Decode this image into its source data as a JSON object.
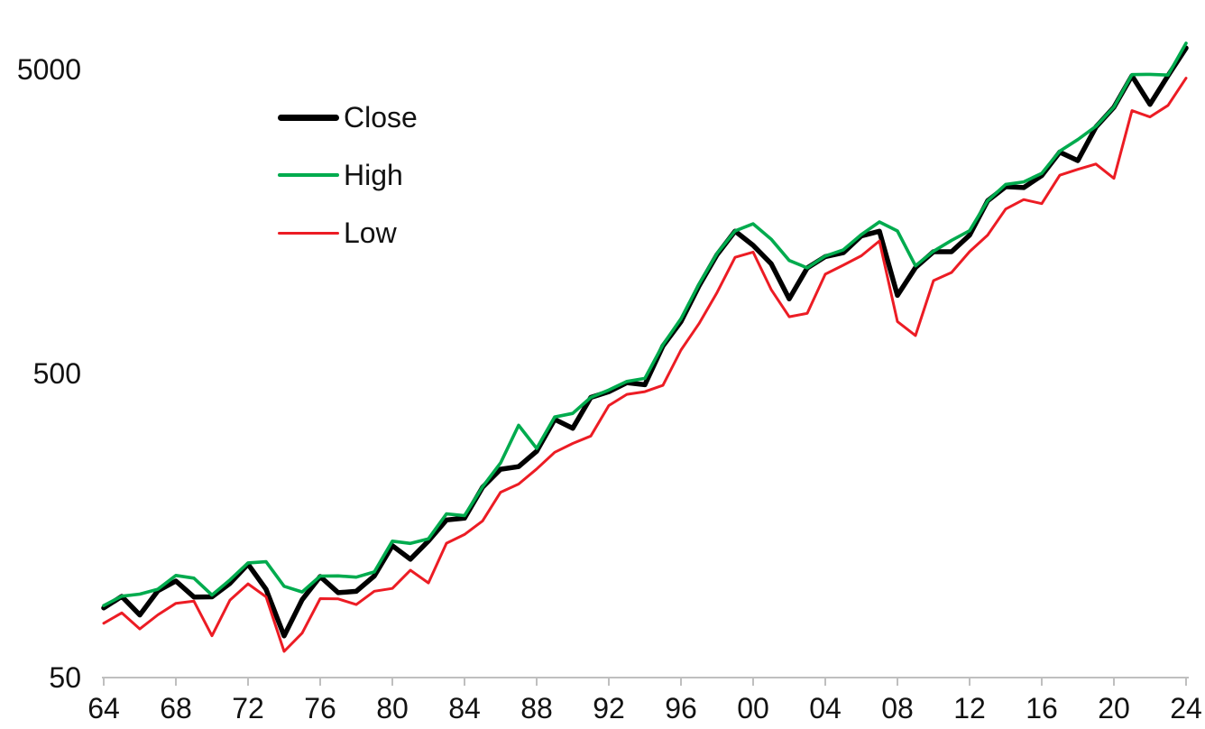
{
  "chart_data": {
    "type": "line",
    "title": "",
    "grid": false,
    "axis_color": "#BFBFBF",
    "label_color": "#121212",
    "legend": {
      "position": "inside-top-left",
      "items": [
        "Close",
        "High",
        "Low"
      ]
    },
    "x_axis": {
      "label": "",
      "start_year": 1964,
      "end_year": 2024,
      "tick_years": [
        1964,
        1968,
        1972,
        1976,
        1980,
        1984,
        1988,
        1992,
        1996,
        2000,
        2004,
        2008,
        2012,
        2016,
        2020,
        2024
      ],
      "tick_labels": [
        "64",
        "68",
        "72",
        "76",
        "80",
        "84",
        "88",
        "92",
        "96",
        "00",
        "04",
        "08",
        "12",
        "16",
        "20",
        "24"
      ]
    },
    "y_axis": {
      "scale": "log",
      "tick_values": [
        50,
        500,
        5000
      ],
      "tick_labels": [
        "50",
        "500",
        "5000"
      ],
      "range": [
        50,
        6300
      ]
    },
    "years": [
      1964,
      1965,
      1966,
      1967,
      1968,
      1969,
      1970,
      1971,
      1972,
      1973,
      1974,
      1975,
      1976,
      1977,
      1978,
      1979,
      1980,
      1981,
      1982,
      1983,
      1984,
      1985,
      1986,
      1987,
      1988,
      1989,
      1990,
      1991,
      1992,
      1993,
      1994,
      1995,
      1996,
      1997,
      1998,
      1999,
      2000,
      2001,
      2002,
      2003,
      2004,
      2005,
      2006,
      2007,
      2008,
      2009,
      2010,
      2011,
      2012,
      2013,
      2014,
      2015,
      2016,
      2017,
      2018,
      2019,
      2020,
      2021,
      2022,
      2023,
      2024
    ],
    "series": [
      {
        "name": "Close",
        "color": "#000000",
        "stroke_width": 5.5,
        "values": [
          84.75,
          92.43,
          80.33,
          96.47,
          103.86,
          92.06,
          92.15,
          102.09,
          118.05,
          97.55,
          68.56,
          90.19,
          107.46,
          95.1,
          96.11,
          107.94,
          135.76,
          122.55,
          140.64,
          164.93,
          167.24,
          211.28,
          242.17,
          247.08,
          277.72,
          353.4,
          330.22,
          417.09,
          435.71,
          466.45,
          459.27,
          615.93,
          740.74,
          970.43,
          1229.23,
          1469.25,
          1320.28,
          1148.08,
          879.82,
          1111.92,
          1211.92,
          1248.29,
          1418.3,
          1468.36,
          903.25,
          1115.1,
          1257.64,
          1257.6,
          1426.19,
          1848.36,
          2058.9,
          2043.94,
          2238.83,
          2673.61,
          2506.85,
          3230.78,
          3756.07,
          4766.18,
          3839.5,
          4769.83,
          5881.63
        ]
      },
      {
        "name": "High",
        "color": "#00AB4E",
        "stroke_width": 3.6,
        "values": [
          86.28,
          92.63,
          94.06,
          97.59,
          108.37,
          106.16,
          93.46,
          104.77,
          119.12,
          120.24,
          99.8,
          95.61,
          107.83,
          107.97,
          106.99,
          111.27,
          140.52,
          138.12,
          143.02,
          172.65,
          170.41,
          212.02,
          254.0,
          337.89,
          283.66,
          359.8,
          369.78,
          417.09,
          441.28,
          470.94,
          482.0,
          621.69,
          757.03,
          983.79,
          1241.81,
          1473.09,
          1552.87,
          1383.37,
          1176.97,
          1112.56,
          1217.33,
          1275.8,
          1431.81,
          1576.09,
          1471.77,
          1130.38,
          1262.6,
          1370.58,
          1474.51,
          1849.44,
          2093.55,
          2134.72,
          2277.53,
          2694.97,
          2940.91,
          3247.93,
          3760.2,
          4808.93,
          4818.62,
          4793.3,
          6099.97
        ]
      },
      {
        "name": "Low",
        "color": "#EC1C24",
        "stroke_width": 3,
        "values": [
          75.43,
          81.6,
          72.28,
          80.38,
          87.72,
          89.2,
          68.61,
          89.94,
          101.67,
          92.16,
          60.96,
          70.04,
          90.9,
          90.71,
          86.9,
          96.13,
          98.22,
          112.77,
          102.42,
          138.34,
          147.82,
          163.68,
          203.49,
          216.46,
          242.63,
          275.31,
          294.51,
          311.49,
          392.41,
          426.88,
          435.86,
          457.2,
          597.29,
          729.55,
          923.32,
          1205.4,
          1254.07,
          944.75,
          768.63,
          788.9,
          1060.72,
          1136.15,
          1219.29,
          1363.98,
          741.02,
          666.79,
          1010.91,
          1074.77,
          1258.86,
          1426.19,
          1737.92,
          1867.01,
          1810.1,
          2245.13,
          2346.58,
          2443.96,
          2191.86,
          3662.71,
          3491.58,
          3808.86,
          4682.11
        ]
      }
    ]
  }
}
